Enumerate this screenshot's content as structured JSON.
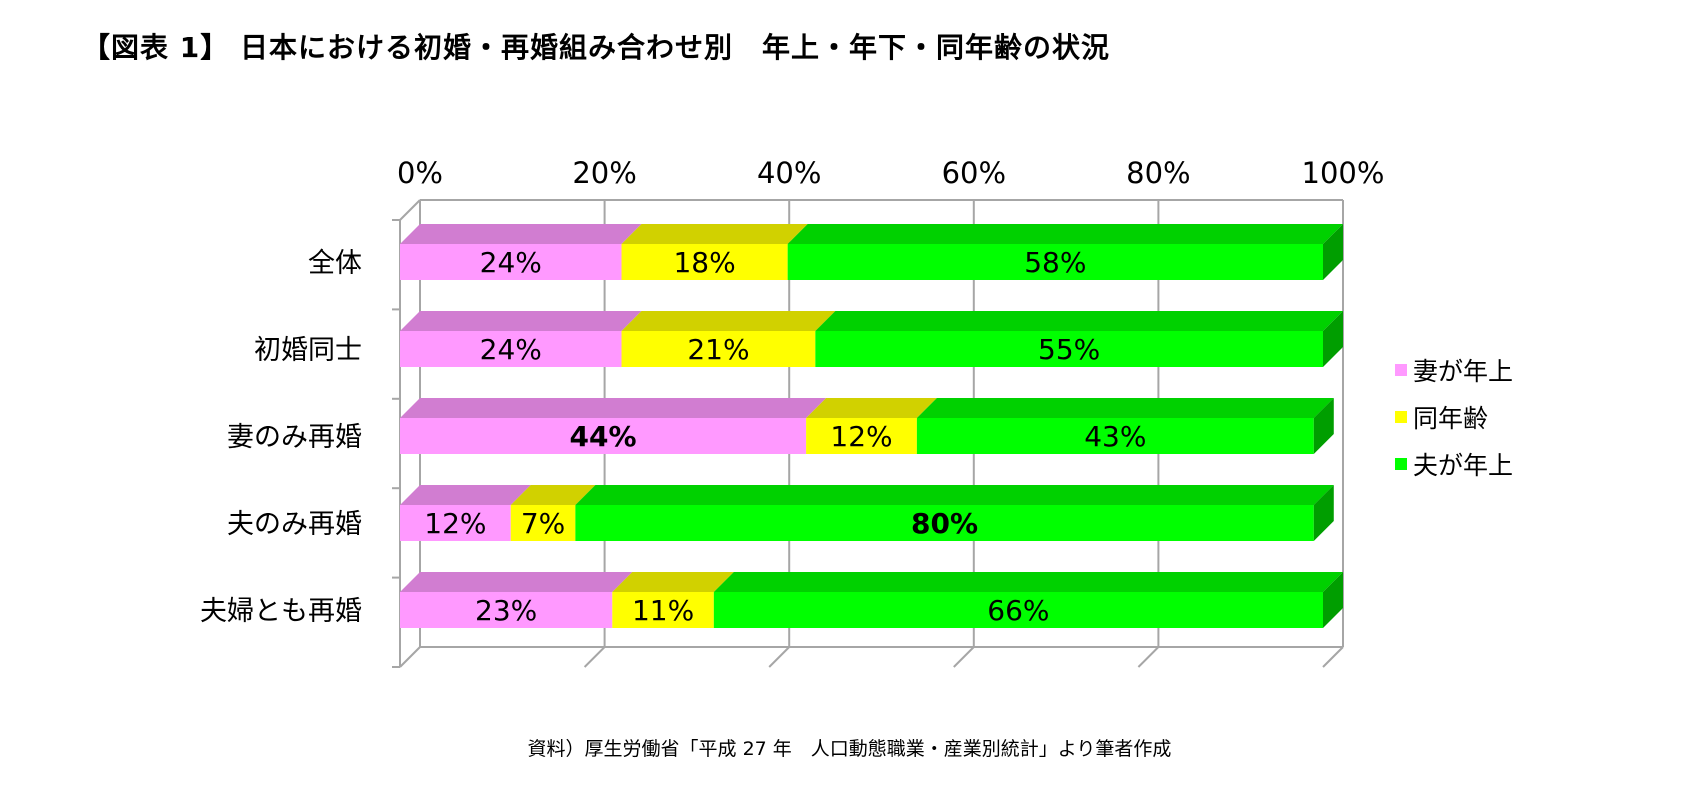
{
  "title": "【図表 1】 日本における初婚・再婚組み合わせ別　年上・年下・同年齢の状況",
  "source": "資料）厚生労働省「平成 27 年　人口動態職業・産業別統計」より筆者作成",
  "chart_data": {
    "type": "bar",
    "orientation": "horizontal",
    "stacked": true,
    "percent_stacked": true,
    "style": "3d",
    "categories": [
      "全体",
      "初婚同士",
      "妻のみ再婚",
      "夫のみ再婚",
      "夫婦とも再婚"
    ],
    "x_ticks": [
      "0%",
      "20%",
      "40%",
      "60%",
      "80%",
      "100%"
    ],
    "xlim": [
      0,
      100
    ],
    "x_axis_position": "top",
    "grid": true,
    "legend_position": "right",
    "series": [
      {
        "name": "妻が年上",
        "color": "#ff99ff",
        "values": [
          24,
          24,
          44,
          12,
          23
        ],
        "labels": [
          "24%",
          "24%",
          "44%",
          "12%",
          "23%"
        ]
      },
      {
        "name": "同年齢",
        "color": "#ffff00",
        "values": [
          18,
          21,
          12,
          7,
          11
        ],
        "labels": [
          "18%",
          "21%",
          "12%",
          "7%",
          "11%"
        ]
      },
      {
        "name": "夫が年上",
        "color": "#00ff00",
        "values": [
          58,
          55,
          43,
          80,
          66
        ],
        "labels": [
          "58%",
          "55%",
          "43%",
          "80%",
          "66%"
        ]
      }
    ],
    "bold_labels": [
      "44%",
      "80%"
    ]
  }
}
